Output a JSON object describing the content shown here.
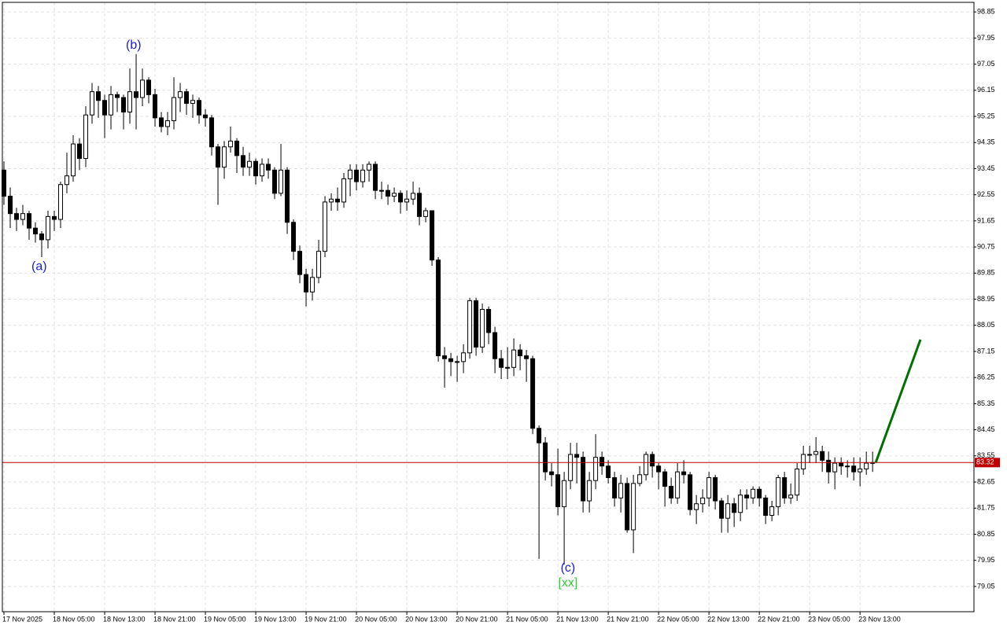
{
  "chart_data": {
    "type": "candlestick",
    "xlim": [
      -0.25,
      154.1
    ],
    "xticks": [
      {
        "value": 0,
        "label": "17 Nov 2025"
      },
      {
        "value": 8,
        "label": "18 Nov 05:00"
      },
      {
        "value": 16,
        "label": "18 Nov 13:00"
      },
      {
        "value": 24,
        "label": "18 Nov 21:00"
      },
      {
        "value": 32,
        "label": "19 Nov 05:00"
      },
      {
        "value": 40,
        "label": "19 Nov 13:00"
      },
      {
        "value": 48,
        "label": "19 Nov 21:00"
      },
      {
        "value": 56,
        "label": "20 Nov 05:00"
      },
      {
        "value": 64,
        "label": "20 Nov 13:00"
      },
      {
        "value": 72,
        "label": "20 Nov 21:00"
      },
      {
        "value": 80,
        "label": "21 Nov 05:00"
      },
      {
        "value": 88,
        "label": "21 Nov 13:00"
      },
      {
        "value": 96,
        "label": "21 Nov 21:00"
      },
      {
        "value": 104,
        "label": "22 Nov 05:00"
      },
      {
        "value": 112,
        "label": "22 Nov 13:00"
      },
      {
        "value": 120,
        "label": "22 Nov 21:00"
      },
      {
        "value": 128,
        "label": "23 Nov 05:00"
      },
      {
        "value": 136,
        "label": "23 Nov 13:00"
      }
    ],
    "ylim": [
      78.18,
      99.18
    ],
    "yticks": [
      98.85,
      97.95,
      97.05,
      96.15,
      95.25,
      94.35,
      93.45,
      92.55,
      91.65,
      90.75,
      89.85,
      88.95,
      88.05,
      87.15,
      86.25,
      85.35,
      84.45,
      83.55,
      82.65,
      81.75,
      80.85,
      79.95,
      79.05
    ],
    "grid": true,
    "up_color": "#ffffff",
    "down_color": "#000000",
    "open": [
      93.4,
      92.5,
      91.9,
      91.7,
      91.9,
      91.4,
      91.2,
      91.0,
      91.8,
      91.7,
      92.9,
      93.2,
      94.3,
      93.8,
      95.3,
      96.1,
      95.8,
      95.3,
      96.0,
      95.9,
      95.4,
      96.1,
      95.9,
      96.5,
      96.0,
      95.2,
      94.9,
      95.1,
      95.9,
      96.1,
      95.7,
      95.8,
      95.3,
      95.2,
      94.2,
      93.5,
      94.2,
      94.4,
      93.9,
      93.5,
      93.7,
      93.2,
      93.6,
      93.4,
      92.6,
      93.4,
      91.6,
      90.6,
      89.8,
      89.2,
      89.7,
      90.6,
      92.3,
      92.4,
      92.3,
      93.1,
      93.4,
      93.0,
      93.4,
      93.6,
      92.7,
      92.7,
      92.5,
      92.6,
      92.3,
      92.4,
      92.6,
      91.8,
      92.0,
      90.3,
      87.0,
      86.9,
      86.8,
      86.8,
      87.1,
      88.9,
      87.3,
      88.6,
      87.8,
      86.9,
      86.6,
      86.6,
      87.2,
      87.0,
      86.9,
      84.5,
      84.0,
      83.0,
      82.9,
      81.8,
      82.7,
      83.6,
      83.5,
      82.0,
      82.7,
      83.5,
      83.2,
      82.8,
      82.1,
      82.6,
      81.0,
      82.6,
      82.9,
      83.6,
      83.2,
      83.0,
      82.5,
      82.1,
      83.0,
      82.9,
      81.7,
      81.9,
      82.1,
      82.8,
      82.0,
      81.4,
      81.9,
      81.6,
      82.2,
      82.1,
      82.4,
      82.1,
      81.5,
      81.8,
      82.8,
      82.1,
      82.2,
      83.1,
      83.6,
      83.6,
      83.7,
      83.4,
      83.0,
      83.3,
      83.2,
      83.2,
      83.0,
      83.1,
      83.3
    ],
    "high": [
      93.7,
      92.8,
      92.1,
      92.2,
      92.0,
      91.6,
      91.3,
      92.0,
      92.0,
      93.0,
      94.0,
      94.6,
      94.5,
      95.6,
      96.4,
      96.3,
      96.0,
      96.3,
      96.1,
      96.0,
      96.9,
      97.4,
      96.9,
      96.6,
      96.2,
      95.4,
      95.4,
      96.6,
      96.4,
      96.2,
      96.0,
      95.9,
      95.5,
      95.3,
      94.3,
      94.4,
      94.9,
      94.5,
      94.2,
      94.0,
      93.8,
      93.8,
      93.8,
      93.5,
      94.3,
      93.5,
      91.7,
      90.8,
      90.0,
      90.0,
      91.0,
      92.5,
      92.6,
      92.8,
      93.3,
      93.6,
      93.6,
      93.6,
      93.7,
      93.7,
      93.0,
      92.9,
      92.8,
      92.7,
      92.7,
      93.0,
      92.8,
      92.1,
      92.0,
      90.4,
      87.3,
      87.1,
      87.0,
      87.4,
      89.0,
      89.0,
      88.8,
      88.7,
      88.0,
      87.2,
      87.3,
      87.6,
      87.4,
      87.2,
      87.0,
      84.6,
      84.2,
      83.3,
      83.8,
      83.0,
      84.0,
      84.0,
      83.7,
      83.0,
      84.3,
      83.7,
      83.4,
      83.0,
      82.9,
      82.8,
      82.9,
      83.2,
      83.7,
      83.7,
      83.3,
      83.1,
      82.8,
      83.3,
      83.4,
      83.0,
      82.2,
      82.4,
      83.0,
      82.9,
      82.1,
      82.2,
      82.1,
      82.4,
      82.4,
      82.5,
      82.5,
      82.2,
      82.0,
      82.9,
      83.0,
      82.6,
      83.3,
      83.9,
      83.9,
      84.2,
      83.9,
      83.7,
      83.5,
      83.5,
      83.4,
      83.5,
      83.5,
      83.7,
      83.7
    ],
    "low": [
      92.2,
      91.4,
      91.3,
      91.5,
      91.0,
      90.9,
      90.4,
      90.7,
      91.3,
      91.4,
      92.6,
      93.0,
      93.4,
      93.5,
      95.0,
      95.2,
      94.5,
      94.8,
      95.4,
      94.8,
      95.0,
      94.8,
      95.6,
      95.7,
      94.9,
      94.7,
      94.6,
      94.8,
      95.4,
      95.3,
      95.2,
      95.0,
      94.9,
      93.9,
      92.2,
      93.1,
      94.0,
      93.3,
      93.2,
      93.2,
      92.9,
      93.0,
      93.1,
      92.4,
      92.5,
      91.2,
      90.3,
      89.5,
      88.7,
      88.9,
      89.5,
      90.4,
      92.0,
      92.0,
      92.1,
      92.5,
      92.7,
      92.8,
      93.0,
      92.4,
      92.4,
      92.2,
      92.3,
      91.9,
      92.0,
      92.2,
      91.5,
      91.6,
      90.1,
      86.8,
      85.9,
      86.3,
      86.1,
      86.4,
      86.9,
      87.0,
      87.1,
      87.4,
      86.4,
      86.2,
      86.2,
      86.3,
      86.5,
      86.1,
      84.3,
      80.0,
      82.7,
      82.5,
      81.5,
      79.8,
      82.4,
      82.6,
      81.6,
      81.6,
      82.4,
      82.9,
      82.6,
      81.8,
      81.6,
      80.9,
      80.2,
      82.5,
      82.7,
      82.8,
      82.4,
      81.8,
      81.9,
      81.9,
      82.6,
      81.5,
      81.2,
      81.6,
      81.8,
      81.7,
      80.9,
      80.9,
      81.1,
      81.3,
      81.7,
      81.9,
      81.8,
      81.2,
      81.3,
      81.5,
      81.9,
      81.9,
      82.0,
      82.9,
      83.3,
      83.3,
      83.0,
      82.6,
      82.4,
      82.9,
      82.8,
      82.7,
      82.5,
      82.9,
      83.0
    ],
    "close": [
      92.5,
      91.9,
      91.7,
      91.9,
      91.4,
      91.2,
      91.0,
      91.8,
      91.7,
      92.9,
      93.2,
      94.3,
      93.8,
      95.3,
      96.1,
      95.8,
      95.3,
      96.0,
      95.9,
      95.4,
      96.1,
      95.9,
      96.5,
      96.0,
      95.2,
      94.9,
      95.1,
      95.9,
      96.1,
      95.7,
      95.8,
      95.3,
      95.2,
      94.2,
      93.5,
      94.2,
      94.4,
      93.9,
      93.5,
      93.7,
      93.2,
      93.6,
      93.4,
      92.6,
      93.4,
      91.6,
      90.6,
      89.8,
      89.2,
      89.7,
      90.6,
      92.3,
      92.4,
      92.3,
      93.1,
      93.4,
      93.0,
      93.4,
      93.6,
      92.7,
      92.7,
      92.5,
      92.6,
      92.3,
      92.4,
      92.6,
      91.8,
      92.0,
      90.3,
      87.0,
      86.9,
      86.8,
      86.8,
      87.1,
      88.9,
      87.3,
      88.6,
      87.8,
      86.9,
      86.6,
      86.6,
      87.2,
      87.0,
      86.9,
      84.5,
      84.0,
      83.0,
      82.9,
      81.8,
      82.7,
      83.6,
      83.5,
      82.0,
      82.7,
      83.5,
      83.2,
      82.8,
      82.1,
      82.6,
      81.0,
      82.6,
      82.9,
      83.6,
      83.2,
      83.0,
      82.5,
      82.1,
      83.0,
      82.9,
      81.7,
      81.9,
      82.1,
      82.8,
      82.0,
      81.4,
      81.9,
      81.6,
      82.2,
      82.1,
      82.4,
      82.1,
      81.5,
      81.8,
      82.8,
      82.1,
      82.2,
      83.1,
      83.6,
      83.6,
      83.7,
      83.4,
      83.0,
      83.3,
      83.2,
      83.2,
      83.0,
      83.1,
      83.3,
      83.32
    ],
    "price_line": {
      "value": 83.32,
      "color": "#c00000"
    },
    "annotations": [
      {
        "text": "(a)",
        "x": 5.6,
        "y": 90.07,
        "color": "#1a1adb"
      },
      {
        "text": "(b)",
        "x": 20.6,
        "y": 97.7,
        "color": "#1a1adb"
      },
      {
        "text": "(c)",
        "x": 89.6,
        "y": 79.67,
        "color": "#1a1adb"
      },
      {
        "text": "[xx]",
        "x": 89.6,
        "y": 79.16,
        "color": "#33cc33"
      }
    ],
    "projection": {
      "x": [
        138.5,
        145.6
      ],
      "y": [
        83.32,
        87.56
      ],
      "color": "#007000"
    }
  }
}
